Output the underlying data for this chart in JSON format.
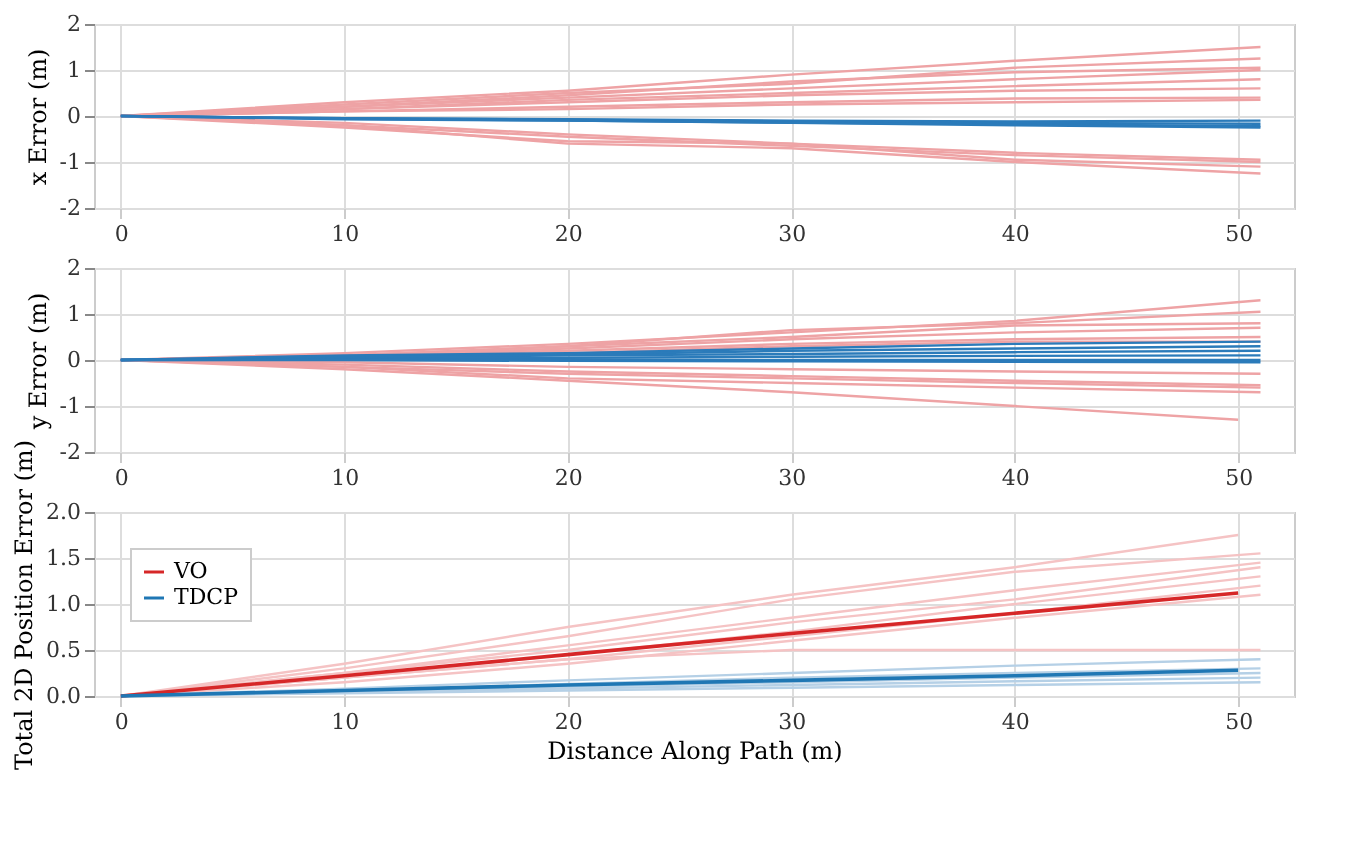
{
  "chart_data": [
    {
      "type": "line",
      "ylabel": "x Error (m)",
      "x": [
        0,
        10,
        20,
        30,
        40,
        51
      ],
      "xlim": [
        -1.2,
        52.5
      ],
      "xticks": [
        0,
        10,
        20,
        30,
        40,
        50
      ],
      "ylim": [
        -2,
        2
      ],
      "yticks": [
        -2,
        -1,
        0,
        1,
        2
      ],
      "grid": true,
      "line_style": "solid",
      "series": [
        {
          "color": "#eea3a5",
          "values": [
            0,
            0.3,
            0.55,
            0.9,
            1.2,
            1.5
          ]
        },
        {
          "color": "#eea3a5",
          "values": [
            0,
            0.25,
            0.5,
            0.7,
            1.05,
            1.25
          ]
        },
        {
          "color": "#eea3a5",
          "values": [
            0,
            0.2,
            0.45,
            0.75,
            0.95,
            1.05
          ]
        },
        {
          "color": "#eea3a5",
          "values": [
            0,
            0.2,
            0.4,
            0.6,
            0.8,
            1.0
          ]
        },
        {
          "color": "#eea3a5",
          "values": [
            0,
            0.15,
            0.35,
            0.5,
            0.65,
            0.8
          ]
        },
        {
          "color": "#eea3a5",
          "values": [
            0,
            0.15,
            0.3,
            0.45,
            0.55,
            0.6
          ]
        },
        {
          "color": "#eea3a5",
          "values": [
            0,
            0.1,
            0.2,
            0.3,
            0.38,
            0.4
          ]
        },
        {
          "color": "#eea3a5",
          "values": [
            0,
            0.1,
            0.15,
            0.25,
            0.3,
            0.35
          ]
        },
        {
          "color": "#eea3a5",
          "values": [
            0,
            -0.15,
            -0.4,
            -0.6,
            -0.8,
            -0.95
          ]
        },
        {
          "color": "#eea3a5",
          "values": [
            0,
            -0.2,
            -0.45,
            -0.65,
            -0.85,
            -1.0
          ]
        },
        {
          "color": "#eea3a5",
          "values": [
            0,
            -0.25,
            -0.55,
            -0.6,
            -0.95,
            -1.1
          ]
        },
        {
          "color": "#eea3a5",
          "values": [
            0,
            -0.2,
            -0.6,
            -0.7,
            -1.0,
            -1.25
          ]
        },
        {
          "color": "#2b7bba",
          "values": [
            0,
            -0.05,
            -0.07,
            -0.1,
            -0.12,
            -0.1
          ]
        },
        {
          "color": "#2b7bba",
          "values": [
            0,
            -0.05,
            -0.08,
            -0.12,
            -0.15,
            -0.17
          ]
        },
        {
          "color": "#2b7bba",
          "values": [
            0,
            -0.06,
            -0.1,
            -0.14,
            -0.18,
            -0.22
          ]
        },
        {
          "color": "#2b7bba",
          "values": [
            0,
            -0.07,
            -0.1,
            -0.15,
            -0.2,
            -0.25
          ]
        }
      ]
    },
    {
      "type": "line",
      "ylabel": "y Error (m)",
      "x": [
        0,
        10,
        20,
        30,
        40,
        51
      ],
      "xlim": [
        -1.2,
        52.5
      ],
      "xticks": [
        0,
        10,
        20,
        30,
        40,
        50
      ],
      "ylim": [
        -2,
        2
      ],
      "yticks": [
        -2,
        -1,
        0,
        1,
        2
      ],
      "grid": true,
      "line_style": "solid",
      "series": [
        {
          "color": "#eea3a5",
          "values": [
            0,
            0.15,
            0.35,
            0.6,
            0.85,
            1.3
          ]
        },
        {
          "color": "#eea3a5",
          "values": [
            0,
            0.1,
            0.3,
            0.65,
            0.8,
            1.05
          ]
        },
        {
          "color": "#eea3a5",
          "values": [
            0,
            0.1,
            0.3,
            0.5,
            0.75,
            0.8
          ]
        },
        {
          "color": "#eea3a5",
          "values": [
            0,
            0.1,
            0.25,
            0.45,
            0.6,
            0.7
          ]
        },
        {
          "color": "#eea3a5",
          "values": [
            0,
            0.1,
            0.2,
            0.35,
            0.45,
            0.5
          ]
        },
        {
          "color": "#eea3a5",
          "values": [
            0,
            0.05,
            0.15,
            0.3,
            0.4,
            0.4
          ]
        },
        {
          "color": "#eea3a5",
          "values": [
            0,
            -0.05,
            -0.15,
            -0.2,
            -0.25,
            -0.3
          ]
        },
        {
          "color": "#eea3a5",
          "values": [
            0,
            -0.1,
            -0.25,
            -0.35,
            -0.45,
            -0.55
          ]
        },
        {
          "color": "#eea3a5",
          "values": [
            0,
            -0.15,
            -0.3,
            -0.4,
            -0.5,
            -0.6
          ]
        },
        {
          "color": "#eea3a5",
          "values": [
            0,
            -0.15,
            -0.4,
            -0.5,
            -0.6,
            -0.7
          ]
        },
        {
          "x": [
            0,
            10,
            20,
            30,
            40,
            50
          ],
          "color": "#eea3a5",
          "values": [
            0,
            -0.2,
            -0.45,
            -0.7,
            -1.0,
            -1.3
          ]
        },
        {
          "color": "#2b7bba",
          "values": [
            0,
            0.1,
            0.15,
            0.25,
            0.35,
            0.4
          ]
        },
        {
          "color": "#2b7bba",
          "values": [
            0,
            0.08,
            0.12,
            0.2,
            0.25,
            0.3
          ]
        },
        {
          "color": "#2b7bba",
          "values": [
            0,
            0.05,
            0.1,
            0.13,
            0.17,
            0.2
          ]
        },
        {
          "color": "#2b7bba",
          "values": [
            0,
            0.03,
            0.05,
            0.07,
            0.09,
            0.1
          ]
        },
        {
          "color": "#2b7bba",
          "values": [
            0,
            0.01,
            0.01,
            0.0,
            0.0,
            0.0
          ]
        },
        {
          "color": "#2b7bba",
          "values": [
            0,
            0.0,
            -0.02,
            -0.03,
            -0.04,
            -0.05
          ]
        }
      ]
    },
    {
      "type": "line",
      "ylabel": "Total 2D Position Error (m)",
      "xlabel": "Distance Along Path (m)",
      "x": [
        0,
        10,
        20,
        30,
        40,
        51
      ],
      "xlim": [
        -1.2,
        52.5
      ],
      "xticks": [
        0,
        10,
        20,
        30,
        40,
        50
      ],
      "ylim": [
        0,
        2
      ],
      "yticks": [
        {
          "value": 0,
          "label": "0.0"
        },
        0.5,
        {
          "value": 1,
          "label": "1.0"
        },
        1.5,
        {
          "value": 2,
          "label": "2.0"
        }
      ],
      "grid": true,
      "legend": "top left",
      "line_style": "solid",
      "series": [
        {
          "x": [
            0,
            10,
            20,
            30,
            40,
            50
          ],
          "color": "#f5c3c4",
          "values": [
            0,
            0.35,
            0.75,
            1.1,
            1.4,
            1.75
          ]
        },
        {
          "color": "#f5c3c4",
          "values": [
            0,
            0.3,
            0.65,
            1.05,
            1.35,
            1.55
          ]
        },
        {
          "color": "#f5c3c4",
          "values": [
            0,
            0.25,
            0.55,
            0.85,
            1.15,
            1.45
          ]
        },
        {
          "color": "#f5c3c4",
          "values": [
            0,
            0.25,
            0.5,
            0.8,
            1.05,
            1.4
          ]
        },
        {
          "color": "#f5c3c4",
          "values": [
            0,
            0.2,
            0.45,
            0.7,
            1.0,
            1.3
          ]
        },
        {
          "color": "#f5c3c4",
          "values": [
            0,
            0.2,
            0.4,
            0.65,
            0.9,
            1.2
          ]
        },
        {
          "color": "#f5c3c4",
          "values": [
            0,
            0.15,
            0.35,
            0.6,
            0.85,
            1.1
          ]
        },
        {
          "color": "#f5c3c4",
          "values": [
            0,
            0.2,
            0.4,
            0.5,
            0.5,
            0.5
          ]
        },
        {
          "color": "#b5d0e6",
          "values": [
            0,
            0.08,
            0.17,
            0.25,
            0.33,
            0.4
          ]
        },
        {
          "color": "#b5d0e6",
          "values": [
            0,
            0.06,
            0.13,
            0.2,
            0.25,
            0.3
          ]
        },
        {
          "color": "#b5d0e6",
          "values": [
            0,
            0.05,
            0.1,
            0.15,
            0.2,
            0.25
          ]
        },
        {
          "color": "#b5d0e6",
          "values": [
            0,
            0.04,
            0.08,
            0.12,
            0.16,
            0.2
          ]
        },
        {
          "color": "#b5d0e6",
          "values": [
            0,
            0.03,
            0.06,
            0.09,
            0.12,
            0.15
          ]
        },
        {
          "name": "VO",
          "x": [
            0,
            10,
            20,
            30,
            40,
            50
          ],
          "color": "#d62728",
          "values": [
            0,
            0.22,
            0.45,
            0.68,
            0.9,
            1.12
          ]
        },
        {
          "name": "TDCP",
          "x": [
            0,
            10,
            20,
            30,
            40,
            50
          ],
          "color": "#1f77b4",
          "values": [
            0,
            0.06,
            0.12,
            0.17,
            0.22,
            0.28
          ]
        }
      ]
    }
  ]
}
